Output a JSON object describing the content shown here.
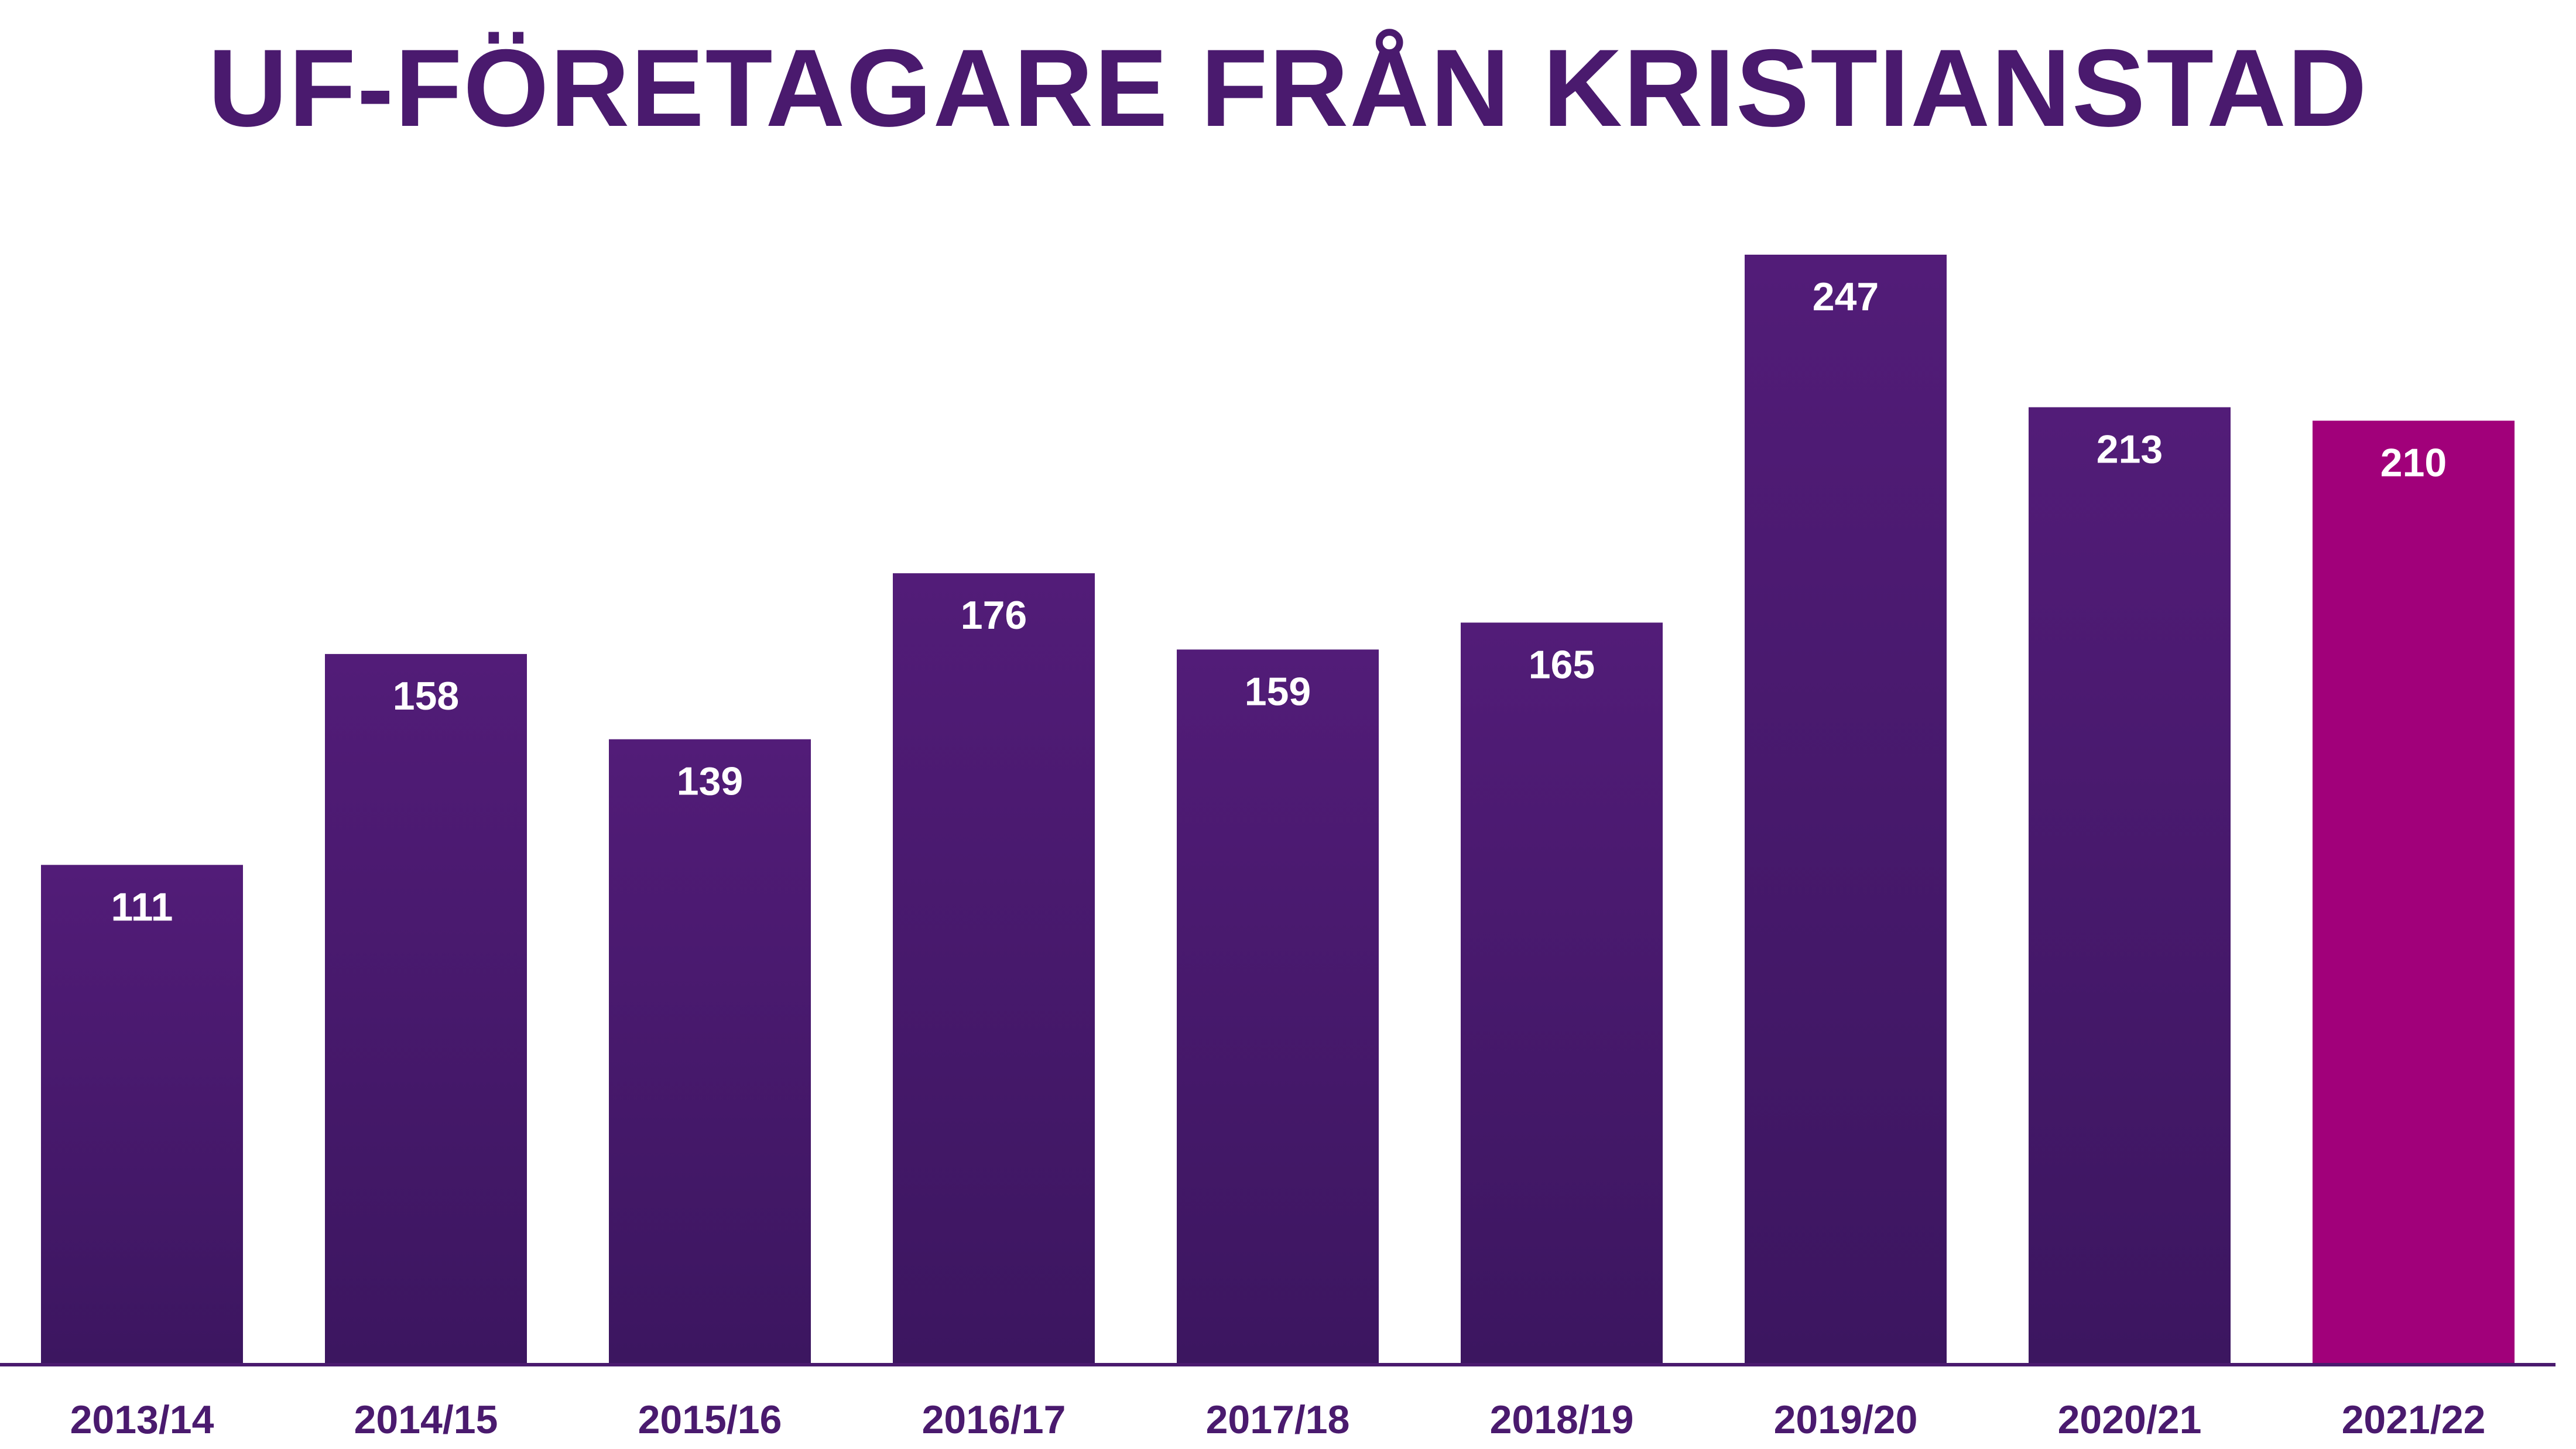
{
  "chart_data": {
    "type": "bar",
    "title": "UF-FÖRETAGARE FRÅN KRISTIANSTAD",
    "categories": [
      "2013/14",
      "2014/15",
      "2015/16",
      "2016/17",
      "2017/18",
      "2018/19",
      "2019/20",
      "2020/21",
      "2021/22"
    ],
    "values": [
      111,
      158,
      139,
      176,
      159,
      165,
      247,
      213,
      210
    ],
    "data_labels": [
      "111",
      "158",
      "139",
      "176",
      "159",
      "165",
      "247",
      "213",
      "210"
    ],
    "xlabel": "",
    "ylabel": "",
    "ylim": [
      0,
      260
    ],
    "grid": false,
    "colors": {
      "bar": "#4a1a6e",
      "bar_gradient_top": "#521c78",
      "bar_gradient_bottom": "#3c1660",
      "highlight": "#a1007a",
      "title": "#4a1a6e",
      "axis": "#4a1a6e",
      "data_label": "#ffffff"
    }
  }
}
